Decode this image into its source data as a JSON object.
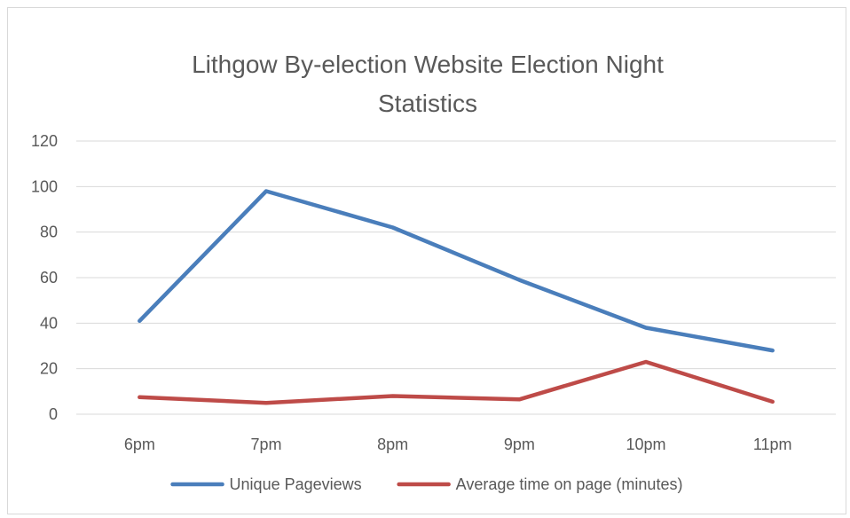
{
  "chart_data": {
    "type": "line",
    "title_line1": "Lithgow By-election Website Election Night",
    "title_line2": "Statistics",
    "categories": [
      "6pm",
      "7pm",
      "8pm",
      "9pm",
      "10pm",
      "11pm"
    ],
    "ylim": [
      0,
      120
    ],
    "y_ticks": [
      0,
      20,
      40,
      60,
      80,
      100,
      120
    ],
    "grid": true,
    "legend_position": "bottom",
    "series": [
      {
        "name": "Unique Pageviews",
        "color": "#4a7ebb",
        "values": [
          41,
          98,
          82,
          59,
          38,
          28
        ]
      },
      {
        "name": "Average time on page (minutes)",
        "color": "#be4b48",
        "values": [
          7.5,
          5,
          8,
          6.5,
          23,
          5.5
        ]
      }
    ]
  }
}
